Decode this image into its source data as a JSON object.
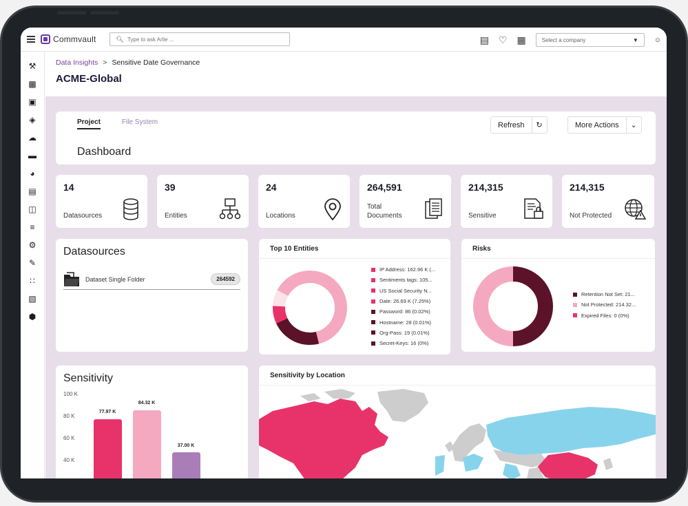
{
  "app": {
    "brand": "Commvault",
    "search_placeholder": "Type to ask Arlie ...",
    "company_placeholder": "Select a company"
  },
  "breadcrumb": {
    "parent": "Data Insights",
    "separator": ">",
    "current": "Sensitive Date Governance"
  },
  "page_title": "ACME-Global",
  "tabs": [
    {
      "label": "Project",
      "active": true
    },
    {
      "label": "File System",
      "active": false
    }
  ],
  "dashboard_title": "Dashboard",
  "buttons": {
    "refresh": "Refresh",
    "more_actions": "More Actions"
  },
  "stats": [
    {
      "value": "14",
      "label": "Datasources",
      "icon": "database-icon"
    },
    {
      "value": "39",
      "label": "Entities",
      "icon": "hierarchy-icon"
    },
    {
      "value": "24",
      "label": "Locations",
      "icon": "location-pin-icon"
    },
    {
      "value": "264,591",
      "label_line1": "Total",
      "label_line2": "Documents",
      "icon": "documents-icon"
    },
    {
      "value": "214,315",
      "label": "Sensitive",
      "icon": "secure-document-icon"
    },
    {
      "value": "214,315",
      "label": "Not Protected",
      "icon": "globe-warning-icon"
    }
  ],
  "datasources": {
    "title": "Datasources",
    "items": [
      {
        "name": "Dataset Single Folder",
        "count": "264592"
      }
    ]
  },
  "entities": {
    "title": "Top  10 Entities",
    "legend": [
      {
        "label": "IP Address: 162.96 K (...",
        "color": "#e8336a"
      },
      {
        "label": "Sentiments tags: 105...",
        "color": "#e8336a"
      },
      {
        "label": "US Social Security N...",
        "color": "#e8336a"
      },
      {
        "label": "Date: 26.69 K (7.25%)",
        "color": "#e8336a"
      },
      {
        "label": "Password: 86 (0.02%)",
        "color": "#5c1228"
      },
      {
        "label": "Hostname: 28 (0.01%)",
        "color": "#5c1228"
      },
      {
        "label": "Org-Pass: 19 (0.01%)",
        "color": "#5c1228"
      },
      {
        "label": "Secret-Keys: 16 (0%)",
        "color": "#5c1228"
      }
    ]
  },
  "risks": {
    "title": "Risks",
    "legend": [
      {
        "label": "Retention Not Set: 21...",
        "color": "#5c1228"
      },
      {
        "label": "Not Protected: 214.32...",
        "color": "#f4a9c0"
      },
      {
        "label": "Expired Files: 0 (0%)",
        "color": "#e8336a"
      }
    ]
  },
  "sensitivity": {
    "title": "Sensitivity",
    "y_ticks": [
      "100 K",
      "80 K",
      "60 K",
      "40 K"
    ],
    "bar_labels": [
      "77.97 K",
      "84.32 K",
      "37.00 K"
    ]
  },
  "location": {
    "title": "Sensitivity by Location"
  },
  "colors": {
    "accent": "#7a3f96",
    "pink": "#e8336a",
    "light_pink": "#f4a9c0",
    "maroon": "#5c1228",
    "purple": "#a97eb8",
    "content_bg": "#e8deea"
  }
}
